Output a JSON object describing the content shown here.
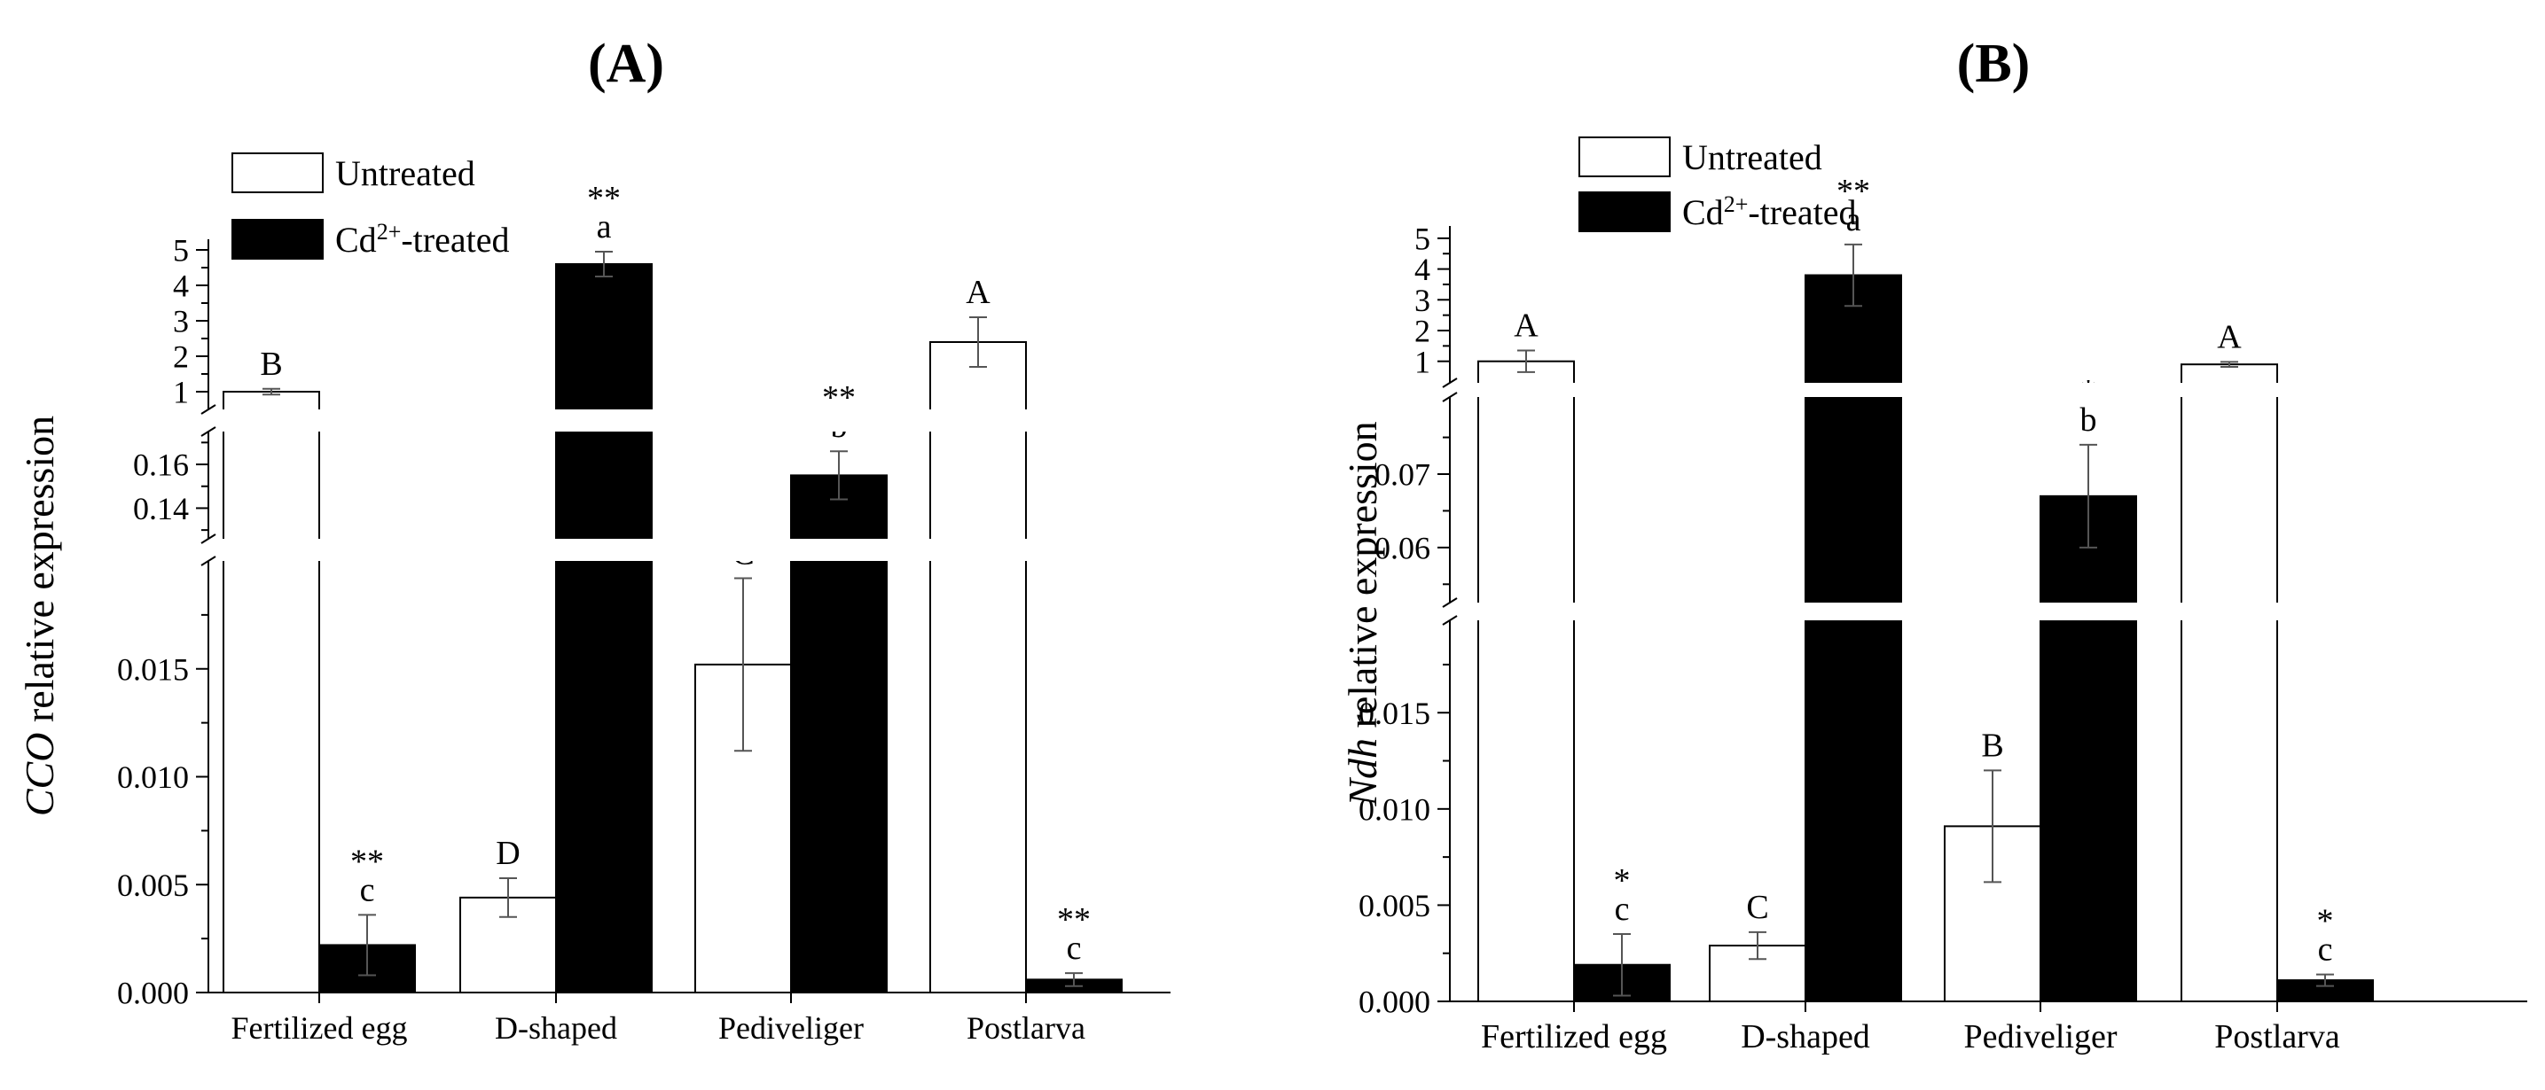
{
  "chart_data": [
    {
      "type": "bar",
      "panel_label": "(A)",
      "title": "",
      "xlabel": "",
      "ylabel_italic": "CCO",
      "ylabel_rest": " relative expression",
      "categories": [
        "Fertilized egg",
        "D-shaped",
        "Pediveliger",
        "Postlarva"
      ],
      "legend": {
        "position": "top-left",
        "entries": [
          "Untreated",
          "Cd",
          "2+",
          "-treated"
        ]
      },
      "series": [
        {
          "name": "Untreated",
          "color": "#ffffff",
          "values": [
            1.0,
            0.0044,
            0.0152,
            2.4
          ],
          "errors": [
            0.08,
            0.0009,
            0.004,
            0.7
          ],
          "letters": [
            "B",
            "D",
            "C",
            "A"
          ],
          "stars": [
            "",
            "",
            "",
            ""
          ]
        },
        {
          "name": "Cd2+-treated",
          "color": "#000000",
          "values": [
            0.0022,
            4.6,
            0.155,
            0.0006
          ],
          "errors": [
            0.0014,
            0.35,
            0.011,
            0.0003
          ],
          "letters": [
            "c",
            "a",
            "b",
            "c"
          ],
          "stars": [
            "**",
            "**",
            "**",
            "**"
          ]
        }
      ],
      "axis_segments": [
        {
          "range": [
            0,
            0.02
          ],
          "ticks": [
            0.0,
            0.005,
            0.01,
            0.015
          ],
          "labels": [
            "0.000",
            "0.005",
            "0.010",
            "0.015"
          ],
          "minor": [
            0.0025,
            0.0075,
            0.0125,
            0.0175
          ]
        },
        {
          "range": [
            0.126,
            0.175
          ],
          "ticks": [
            0.14,
            0.16
          ],
          "labels": [
            "0.14",
            "0.16"
          ],
          "minor": [
            0.13,
            0.15,
            0.17
          ]
        },
        {
          "range": [
            0.5,
            5.3
          ],
          "ticks": [
            1,
            2,
            3,
            4,
            5
          ],
          "labels": [
            "1",
            "2",
            "3",
            "4",
            "5"
          ],
          "minor": [
            1.5,
            2.5,
            3.5,
            4.5
          ]
        }
      ]
    },
    {
      "type": "bar",
      "panel_label": "(B)",
      "title": "",
      "xlabel": "",
      "ylabel_italic": "Ndh",
      "ylabel_rest": " relative expression",
      "categories": [
        "Fertilized egg",
        "D-shaped",
        "Pediveliger",
        "Postlarva"
      ],
      "legend": {
        "position": "top-left",
        "entries": [
          "Untreated",
          "Cd",
          "2+",
          "-treated"
        ]
      },
      "series": [
        {
          "name": "Untreated",
          "color": "#ffffff",
          "values": [
            1.0,
            0.0029,
            0.0091,
            0.9
          ],
          "errors": [
            0.35,
            0.0007,
            0.0029,
            0.08
          ],
          "letters": [
            "A",
            "C",
            "B",
            "A"
          ],
          "stars": [
            "",
            "",
            "",
            ""
          ]
        },
        {
          "name": "Cd2+-treated",
          "color": "#000000",
          "values": [
            0.0019,
            3.8,
            0.067,
            0.0011
          ],
          "errors": [
            0.0016,
            1.0,
            0.007,
            0.0003
          ],
          "letters": [
            "c",
            "a",
            "b",
            "c"
          ],
          "stars": [
            "*",
            "**",
            "*",
            "*"
          ]
        }
      ],
      "axis_segments": [
        {
          "range": [
            0,
            0.0198
          ],
          "ticks": [
            0.0,
            0.005,
            0.01,
            0.015
          ],
          "labels": [
            "0.000",
            "0.005",
            "0.010",
            "0.015"
          ],
          "minor": [
            0.0025,
            0.0075,
            0.0125,
            0.0175
          ]
        },
        {
          "range": [
            0.0525,
            0.0805
          ],
          "ticks": [
            0.06,
            0.07
          ],
          "labels": [
            "0.06",
            "0.07"
          ],
          "minor": [
            0.055,
            0.065,
            0.075
          ]
        },
        {
          "range": [
            0.3,
            5.4
          ],
          "ticks": [
            1,
            2,
            3,
            4,
            5
          ],
          "labels": [
            "1",
            "2",
            "3",
            "4",
            "5"
          ],
          "minor": [
            1.5,
            2.5,
            3.5,
            4.5
          ]
        }
      ]
    }
  ]
}
